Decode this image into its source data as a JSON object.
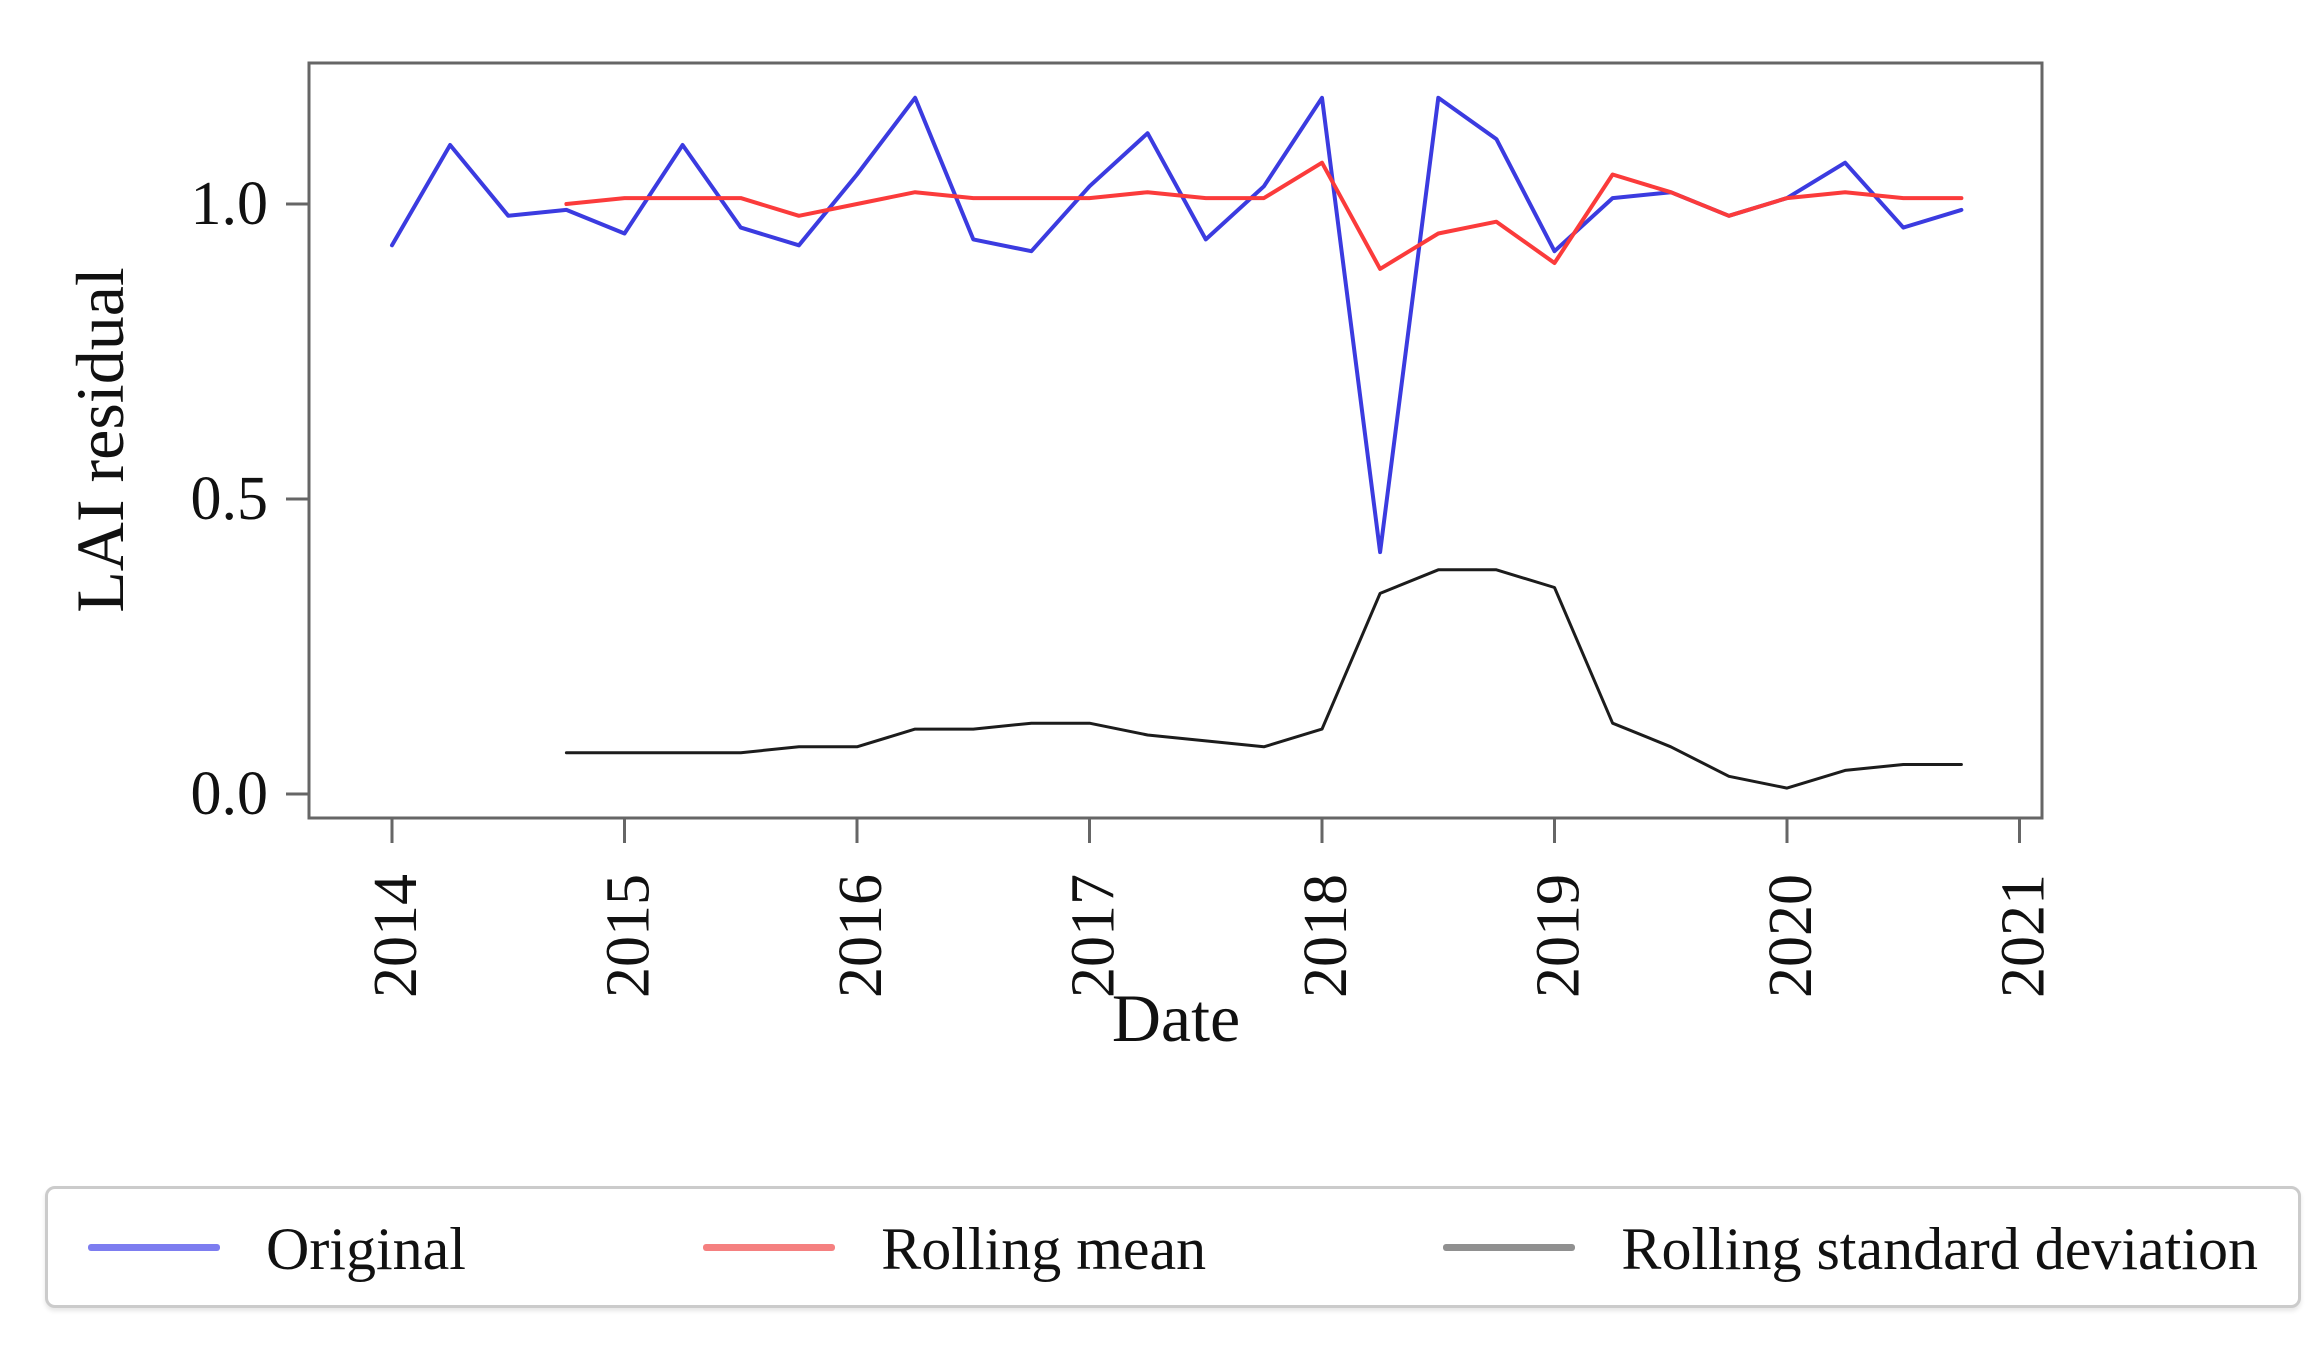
{
  "figure": {
    "xlabel": "Date",
    "ylabel": "LAI residual"
  },
  "axes": {
    "x_ticks": [
      {
        "label": "2014",
        "value": 2014
      },
      {
        "label": "2015",
        "value": 2015
      },
      {
        "label": "2016",
        "value": 2016
      },
      {
        "label": "2017",
        "value": 2017
      },
      {
        "label": "2018",
        "value": 2018
      },
      {
        "label": "2019",
        "value": 2019
      },
      {
        "label": "2020",
        "value": 2020
      },
      {
        "label": "2021",
        "value": 2021
      }
    ],
    "y_ticks": [
      {
        "label": "0.0",
        "value": 0.0
      },
      {
        "label": "0.5",
        "value": 0.5
      },
      {
        "label": "1.0",
        "value": 1.0
      }
    ],
    "spine_color": "#666666"
  },
  "legend": {
    "items": [
      {
        "label": "Original",
        "sample_color": "#7d7df0"
      },
      {
        "label": "Rolling mean",
        "sample_color": "#f58080"
      },
      {
        "label": "Rolling standard deviation",
        "sample_color": "#909090"
      }
    ]
  },
  "chart_data": {
    "type": "line",
    "title": "",
    "xlabel": "Date",
    "ylabel": "LAI residual",
    "xlim": [
      2013.64,
      2021.1
    ],
    "ylim": [
      -0.04,
      1.24
    ],
    "grid": false,
    "legend_position": "bottom outside, horizontal",
    "x_unit": "decimal year, quarterly samples",
    "series": [
      {
        "name": "Original",
        "color": "#3b3be0",
        "x": [
          2014.0,
          2014.25,
          2014.5,
          2014.75,
          2015.0,
          2015.25,
          2015.5,
          2015.75,
          2016.0,
          2016.25,
          2016.5,
          2016.75,
          2017.0,
          2017.25,
          2017.5,
          2017.75,
          2018.0,
          2018.25,
          2018.5,
          2018.75,
          2019.0,
          2019.25,
          2019.5,
          2019.75,
          2020.0,
          2020.25,
          2020.5,
          2020.75
        ],
        "values": [
          0.93,
          1.1,
          0.98,
          0.99,
          0.95,
          1.1,
          0.96,
          0.93,
          1.05,
          1.18,
          0.94,
          0.92,
          1.03,
          1.12,
          0.94,
          1.03,
          1.18,
          0.41,
          1.18,
          1.11,
          0.92,
          1.01,
          1.02,
          0.98,
          1.01,
          1.07,
          0.96,
          0.99
        ]
      },
      {
        "name": "Rolling mean",
        "color": "#fb3b3b",
        "x": [
          2014.75,
          2015.0,
          2015.25,
          2015.5,
          2015.75,
          2016.0,
          2016.25,
          2016.5,
          2016.75,
          2017.0,
          2017.25,
          2017.5,
          2017.75,
          2018.0,
          2018.25,
          2018.5,
          2018.75,
          2019.0,
          2019.25,
          2019.5,
          2019.75,
          2020.0,
          2020.25,
          2020.5,
          2020.75
        ],
        "values": [
          1.0,
          1.01,
          1.01,
          1.01,
          0.98,
          1.0,
          1.02,
          1.01,
          1.01,
          1.01,
          1.02,
          1.01,
          1.01,
          1.07,
          0.89,
          0.95,
          0.97,
          0.9,
          1.05,
          1.02,
          0.98,
          1.01,
          1.02,
          1.01,
          1.01
        ]
      },
      {
        "name": "Rolling standard deviation",
        "color": "#1c1c1c",
        "x": [
          2014.75,
          2015.0,
          2015.25,
          2015.5,
          2015.75,
          2016.0,
          2016.25,
          2016.5,
          2016.75,
          2017.0,
          2017.25,
          2017.5,
          2017.75,
          2018.0,
          2018.25,
          2018.5,
          2018.75,
          2019.0,
          2019.25,
          2019.5,
          2019.75,
          2020.0,
          2020.25,
          2020.5,
          2020.75
        ],
        "values": [
          0.07,
          0.07,
          0.07,
          0.07,
          0.08,
          0.08,
          0.11,
          0.11,
          0.12,
          0.12,
          0.1,
          0.09,
          0.08,
          0.11,
          0.34,
          0.38,
          0.38,
          0.35,
          0.12,
          0.08,
          0.03,
          0.01,
          0.04,
          0.05,
          0.05
        ]
      }
    ]
  }
}
